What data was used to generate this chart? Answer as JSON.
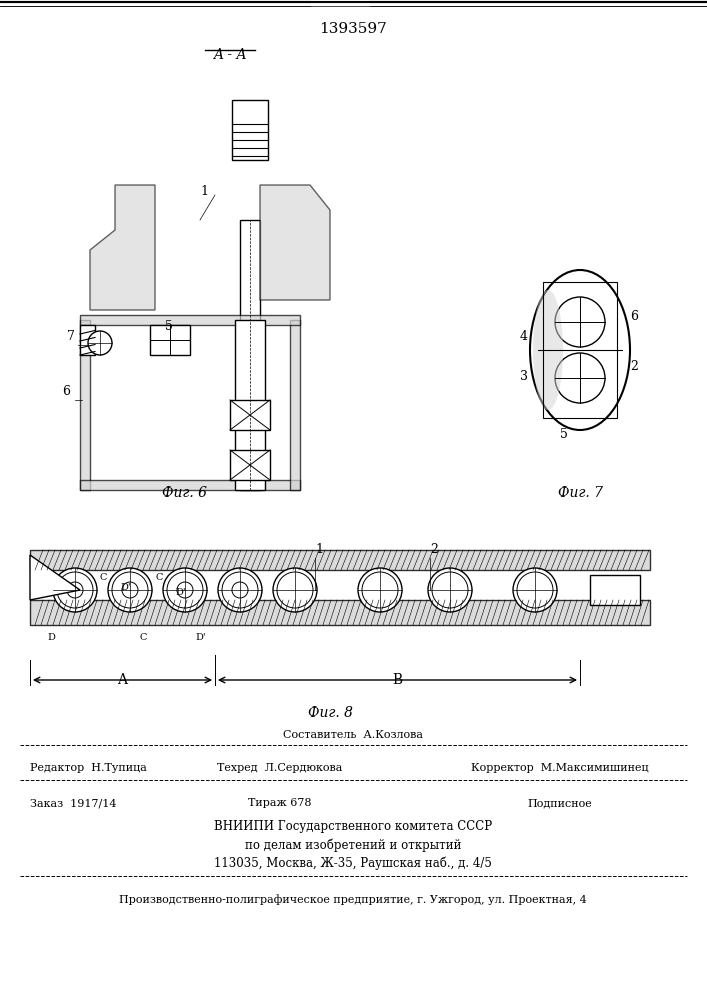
{
  "title_number": "1393597",
  "background_color": "#ffffff",
  "figsize": [
    7.07,
    10.0
  ],
  "dpi": 100,
  "top_lines": true,
  "fig6_label": "Фиг. 6",
  "fig7_label": "Фиг. 7",
  "fig8_label": "Фиг. 8",
  "section_label": "A - A",
  "footer": {
    "line1_left": "Редактор  Н.Тупица",
    "line1_mid": "Техред  Л.Сердюкова",
    "line1_right": "Корректор  М.Максимишинец",
    "line2_left": "Заказ  1917/14",
    "line2_mid": "Тираж 678",
    "line2_right": "Подписное",
    "line3": "ВНИИПИ Государственного комитета СССР",
    "line4": "по делам изобретений и открытий",
    "line5": "113035, Москва, Ж-35, Раушская наб., д. 4/5",
    "line6": "Производственно-полиграфическое предприятие, г. Ужгород, ул. Проектная, 4",
    "sestavitel_label": "Составитель  А.Козлова"
  }
}
